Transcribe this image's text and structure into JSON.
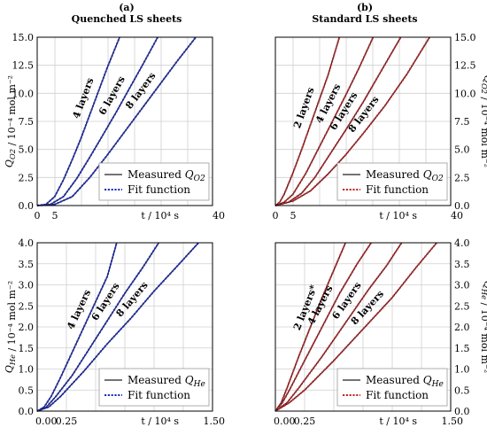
{
  "headers": {
    "left_tag": "(a)",
    "left_title": "Quenched LS sheets",
    "right_tag": "(b)",
    "right_title": "Standard LS sheets"
  },
  "chart_data": [
    {
      "type": "line",
      "panel": "top-left",
      "column": "Quenched LS sheets",
      "color": "#1f2fbf",
      "xlim": [
        0,
        40
      ],
      "ylim": [
        0,
        15
      ],
      "xticks": [
        "0",
        "5",
        "40"
      ],
      "yticks": [
        "0.0",
        "2.5",
        "5.0",
        "7.5",
        "10.0",
        "12.5",
        "15.0"
      ],
      "xlabel": "t / 10⁴ s",
      "ylabel": "Q_O2 / 10⁻⁴ mol m⁻²",
      "ylabel_side": "left",
      "grid": true,
      "legend_position": "bottom-right",
      "legend": [
        "Measured Q_O2",
        "Fit function"
      ],
      "series": [
        {
          "name": "4 layers",
          "x": [
            0,
            2,
            4,
            6,
            8,
            10,
            12,
            14,
            16,
            18.8
          ],
          "y": [
            0,
            0.1,
            0.8,
            2.3,
            4.1,
            6.0,
            8.1,
            10.2,
            12.3,
            15.0
          ]
        },
        {
          "name": "6 layers",
          "x": [
            0,
            3,
            6,
            9,
            12,
            15,
            18,
            21,
            24,
            27.5
          ],
          "y": [
            0,
            0.1,
            0.8,
            2.4,
            4.3,
            6.3,
            8.3,
            10.4,
            12.5,
            15.0
          ]
        },
        {
          "name": "8 layers",
          "x": [
            0,
            4,
            8,
            12,
            16,
            20,
            24,
            28,
            32,
            36.2
          ],
          "y": [
            0,
            0.1,
            0.8,
            2.5,
            4.5,
            6.6,
            8.7,
            10.8,
            12.9,
            15.0
          ]
        }
      ]
    },
    {
      "type": "line",
      "panel": "top-right",
      "column": "Standard LS sheets",
      "color": "#c0282a",
      "xlim": [
        0,
        40
      ],
      "ylim": [
        0,
        15
      ],
      "xticks": [
        "0",
        "5",
        "40"
      ],
      "yticks": [
        "0.0",
        "2.5",
        "5.0",
        "7.5",
        "10.0",
        "12.5",
        "15.0"
      ],
      "xlabel": "t / 10⁴ s",
      "ylabel": "Q_O2 / 10⁻⁴ mol m⁻²",
      "ylabel_side": "right",
      "grid": true,
      "legend_position": "bottom-right",
      "legend": [
        "Measured Q_O2",
        "Fit function"
      ],
      "series": [
        {
          "name": "2 layers",
          "x": [
            0,
            1,
            2,
            4,
            6,
            8,
            10,
            12,
            14.6
          ],
          "y": [
            0,
            0.3,
            1.0,
            2.9,
            5.0,
            7.2,
            9.4,
            11.6,
            15.0
          ]
        },
        {
          "name": "4 layers",
          "x": [
            0,
            2,
            4,
            7,
            10,
            13,
            16,
            19,
            22.3
          ],
          "y": [
            0,
            0.3,
            1.0,
            2.9,
            5.2,
            7.5,
            9.8,
            12.2,
            15.0
          ]
        },
        {
          "name": "6 layers",
          "x": [
            0,
            3,
            6,
            9,
            12,
            16,
            20,
            24,
            28.6
          ],
          "y": [
            0,
            0.3,
            1.1,
            2.5,
            4.3,
            6.7,
            9.2,
            11.9,
            15.0
          ]
        },
        {
          "name": "8 layers",
          "x": [
            0,
            4,
            8,
            12,
            16,
            20,
            25,
            30,
            35.2
          ],
          "y": [
            0,
            0.4,
            1.3,
            2.8,
            4.5,
            6.4,
            8.9,
            11.7,
            15.0
          ]
        }
      ]
    },
    {
      "type": "line",
      "panel": "bottom-left",
      "column": "Quenched LS sheets",
      "color": "#1f2fbf",
      "xlim": [
        0,
        1.5
      ],
      "ylim": [
        0,
        4
      ],
      "xticks": [
        "0.00",
        "0.25",
        "1.50"
      ],
      "yticks": [
        "0.0",
        "0.5",
        "1.0",
        "1.5",
        "2.0",
        "2.5",
        "3.0",
        "3.5",
        "4.0"
      ],
      "xlabel": "t / 10⁴ s",
      "ylabel": "Q_He / 10⁻⁴ mol m⁻²",
      "ylabel_side": "left",
      "grid": true,
      "legend_position": "bottom-right",
      "legend": [
        "Measured Q_He",
        "Fit function"
      ],
      "series": [
        {
          "name": "4 layers",
          "x": [
            0,
            0.06,
            0.12,
            0.2,
            0.3,
            0.4,
            0.5,
            0.6,
            0.68
          ],
          "y": [
            0,
            0.1,
            0.35,
            0.8,
            1.4,
            2.0,
            2.6,
            3.2,
            4.0
          ]
        },
        {
          "name": "6 layers",
          "x": [
            0,
            0.08,
            0.16,
            0.3,
            0.45,
            0.6,
            0.75,
            0.9,
            1.04
          ],
          "y": [
            0,
            0.1,
            0.35,
            0.85,
            1.5,
            2.15,
            2.8,
            3.4,
            4.0
          ]
        },
        {
          "name": "8 layers",
          "x": [
            0,
            0.1,
            0.2,
            0.4,
            0.6,
            0.8,
            1.0,
            1.2,
            1.38
          ],
          "y": [
            0,
            0.1,
            0.35,
            0.95,
            1.6,
            2.2,
            2.85,
            3.45,
            4.0
          ]
        }
      ]
    },
    {
      "type": "line",
      "panel": "bottom-right",
      "column": "Standard LS sheets",
      "color": "#c0282a",
      "xlim": [
        0,
        1.5
      ],
      "ylim": [
        0,
        4
      ],
      "xticks": [
        "0.00",
        "0.25",
        "1.50"
      ],
      "yticks": [
        "0.0",
        "0.5",
        "1.0",
        "1.5",
        "2.0",
        "2.5",
        "3.0",
        "3.5",
        "4.0"
      ],
      "xlabel": "t / 10⁴ s",
      "ylabel": "Q_He / 10⁻⁴ mol m⁻²",
      "ylabel_side": "right",
      "grid": true,
      "legend_position": "bottom-right",
      "legend": [
        "Measured Q_He",
        "Fit function"
      ],
      "series": [
        {
          "name": "2 layers*",
          "x": [
            0,
            0.05,
            0.1,
            0.2,
            0.3,
            0.4,
            0.5,
            0.6
          ],
          "y": [
            0,
            0.2,
            0.55,
            1.3,
            2.0,
            2.7,
            3.35,
            4.0
          ]
        },
        {
          "name": "4 layers",
          "x": [
            0,
            0.06,
            0.12,
            0.25,
            0.4,
            0.55,
            0.7,
            0.82
          ],
          "y": [
            0,
            0.2,
            0.5,
            1.2,
            2.0,
            2.8,
            3.5,
            4.0
          ]
        },
        {
          "name": "6 layers",
          "x": [
            0,
            0.1,
            0.2,
            0.4,
            0.6,
            0.8,
            0.95,
            1.08
          ],
          "y": [
            0,
            0.2,
            0.55,
            1.3,
            2.1,
            2.9,
            3.45,
            4.0
          ]
        },
        {
          "name": "8 layers",
          "x": [
            0,
            0.12,
            0.25,
            0.5,
            0.75,
            1.0,
            1.2,
            1.38
          ],
          "y": [
            0,
            0.2,
            0.5,
            1.2,
            1.95,
            2.7,
            3.4,
            4.0
          ]
        }
      ]
    }
  ]
}
